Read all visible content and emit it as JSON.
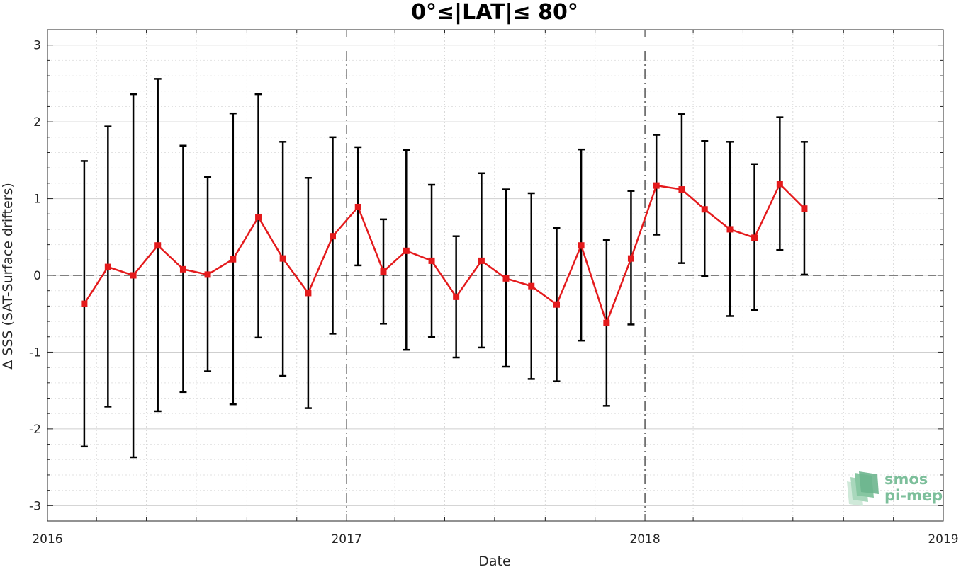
{
  "chart_data": {
    "type": "line",
    "title": "0°≤|LAT|≤ 80°",
    "xlabel": "Date",
    "ylabel": "Δ SSS (SAT-Surface drifters)",
    "xlim": [
      "2016-01-01",
      "2019-01-01"
    ],
    "ylim": [
      -3.2,
      3.2
    ],
    "xticks": [
      "2016",
      "2017",
      "2018",
      "2019"
    ],
    "yticks": [
      -3,
      -2,
      -1,
      0,
      1,
      2,
      3
    ],
    "grid": true,
    "reference_lines": {
      "horizontal_zero": true,
      "vertical_dates": [
        "2017-01-01",
        "2018-01-01"
      ]
    },
    "colors": {
      "series": "#e41a1c",
      "errorbar": "#000000",
      "grid": "#d9d9d9"
    },
    "series": [
      {
        "x": [
          "2016-02-15",
          "2016-03-15",
          "2016-04-15",
          "2016-05-15",
          "2016-06-15",
          "2016-07-15",
          "2016-08-15",
          "2016-09-15",
          "2016-10-15",
          "2016-11-15",
          "2016-12-15",
          "2017-01-15",
          "2017-02-15",
          "2017-03-15",
          "2017-04-15",
          "2017-05-15",
          "2017-06-15",
          "2017-07-15",
          "2017-08-15",
          "2017-09-15",
          "2017-10-15",
          "2017-11-15",
          "2017-12-15",
          "2018-01-15",
          "2018-02-15",
          "2018-03-15",
          "2018-04-15",
          "2018-05-15",
          "2018-06-15",
          "2018-07-15"
        ],
        "values": [
          -0.37,
          0.11,
          0.0,
          0.39,
          0.08,
          0.01,
          0.21,
          0.76,
          0.22,
          -0.23,
          0.51,
          0.89,
          0.05,
          0.32,
          0.19,
          -0.28,
          0.19,
          -0.04,
          -0.14,
          -0.38,
          0.39,
          -0.62,
          0.22,
          1.17,
          1.12,
          0.86,
          0.6,
          0.49,
          1.19,
          0.87
        ],
        "err_low": [
          -2.23,
          -1.71,
          -2.37,
          -1.77,
          -1.52,
          -1.25,
          -1.68,
          -0.81,
          -1.31,
          -1.73,
          -0.76,
          0.13,
          -0.63,
          -0.97,
          -0.8,
          -1.07,
          -0.94,
          -1.19,
          -1.35,
          -1.38,
          -0.85,
          -1.7,
          -0.64,
          0.53,
          0.16,
          -0.01,
          -0.53,
          -0.45,
          0.33,
          0.01
        ],
        "err_high": [
          1.49,
          1.94,
          2.36,
          2.56,
          1.69,
          1.28,
          2.11,
          2.36,
          1.74,
          1.27,
          1.8,
          1.67,
          0.73,
          1.63,
          1.18,
          0.51,
          1.33,
          1.12,
          1.07,
          0.62,
          1.64,
          0.46,
          1.1,
          1.83,
          2.1,
          1.75,
          1.74,
          1.45,
          2.06,
          1.74
        ]
      }
    ]
  },
  "logo": {
    "line1": "smos",
    "line2": "pi-mep"
  }
}
